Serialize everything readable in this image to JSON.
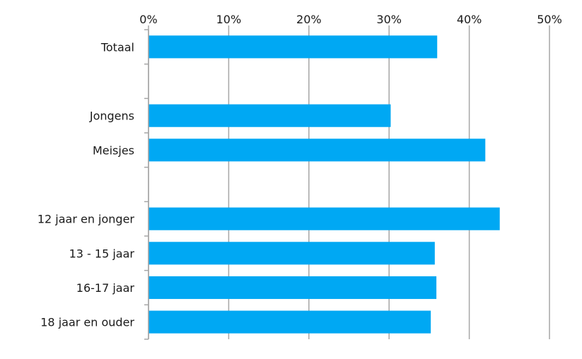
{
  "chart_data": {
    "type": "bar",
    "orientation": "horizontal",
    "title": "",
    "xlabel": "",
    "ylabel": "",
    "xlim": [
      0,
      50
    ],
    "x_ticks": [
      "0%",
      "10%",
      "20%",
      "30%",
      "40%",
      "50%"
    ],
    "x_axis_position": "top",
    "grid": true,
    "bar_color": "#00a8f3",
    "axis_color": "#a6a6a6",
    "categories": [
      "Totaal",
      "",
      "Jongens",
      "Meisjes",
      "",
      "12 jaar en jonger",
      "13 - 15 jaar",
      "16-17 jaar",
      "18 jaar en ouder"
    ],
    "values": [
      36,
      null,
      30.2,
      42,
      null,
      43.8,
      35.7,
      35.9,
      35.2
    ]
  }
}
